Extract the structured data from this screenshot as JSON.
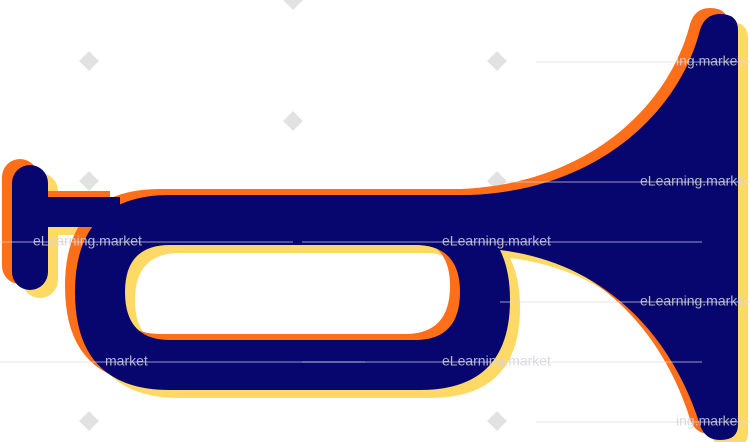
{
  "watermarks": [
    "ing.market",
    "eLearning.marke",
    "eLearning.market",
    "eLearning.market",
    "eLearning.marke",
    "market",
    "eLearning.market",
    "ing.market"
  ]
}
